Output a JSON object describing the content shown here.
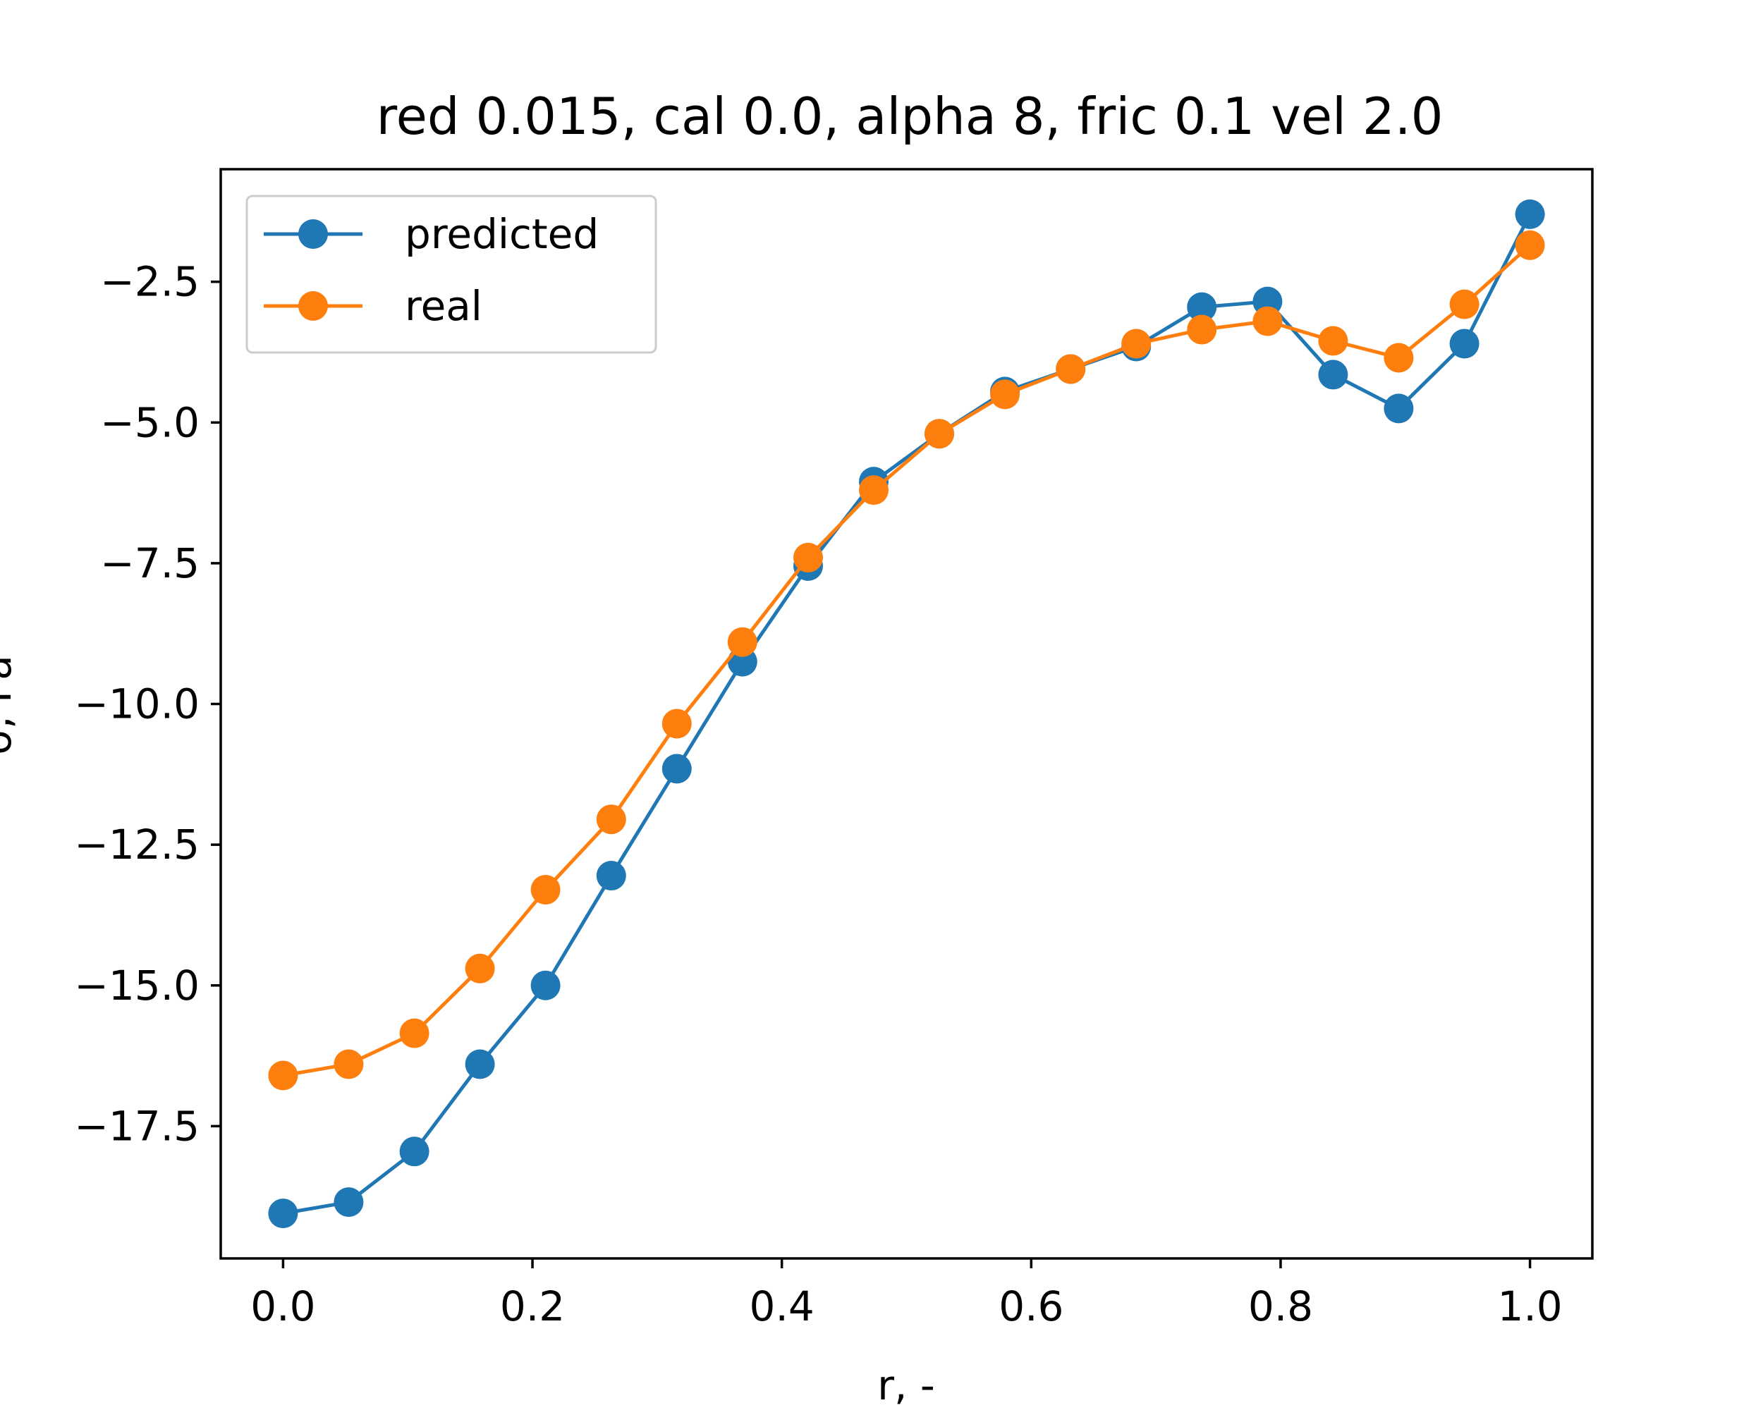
{
  "chart_data": {
    "type": "line",
    "title": "red 0.015, cal 0.0, alpha 8, fric 0.1 vel 2.0",
    "xlabel": "r, -",
    "ylabel": "σ, Pa",
    "xlim": [
      -0.05,
      1.05
    ],
    "ylim": [
      -19.85,
      -0.5
    ],
    "x_ticks": [
      0.0,
      0.2,
      0.4,
      0.6,
      0.8,
      1.0
    ],
    "x_tick_labels": [
      "0.0",
      "0.2",
      "0.4",
      "0.6",
      "0.8",
      "1.0"
    ],
    "y_ticks": [
      -2.5,
      -5.0,
      -7.5,
      -10.0,
      -12.5,
      -15.0,
      -17.5
    ],
    "y_tick_labels": [
      "−2.5",
      "−5.0",
      "−7.5",
      "−10.0",
      "−12.5",
      "−15.0",
      "−17.5"
    ],
    "legend_position": "top-left",
    "grid": false,
    "x": [
      0.0,
      0.0526,
      0.1053,
      0.1579,
      0.2105,
      0.2632,
      0.3158,
      0.3684,
      0.4211,
      0.4737,
      0.5263,
      0.5789,
      0.6316,
      0.6842,
      0.7368,
      0.7895,
      0.8421,
      0.8947,
      0.9474,
      1.0
    ],
    "series": [
      {
        "name": "predicted",
        "color": "#1f77b4",
        "values": [
          -19.05,
          -18.85,
          -17.95,
          -16.4,
          -15.0,
          -13.05,
          -11.15,
          -9.25,
          -7.55,
          -6.05,
          -5.2,
          -4.45,
          -4.05,
          -3.65,
          -2.95,
          -2.85,
          -4.15,
          -4.75,
          -3.6,
          -1.3
        ]
      },
      {
        "name": "real",
        "color": "#ff7f0e",
        "values": [
          -16.6,
          -16.4,
          -15.85,
          -14.7,
          -13.3,
          -12.05,
          -10.35,
          -8.9,
          -7.4,
          -6.2,
          -5.2,
          -4.5,
          -4.05,
          -3.6,
          -3.35,
          -3.2,
          -3.55,
          -3.85,
          -2.9,
          -1.85
        ]
      }
    ]
  }
}
